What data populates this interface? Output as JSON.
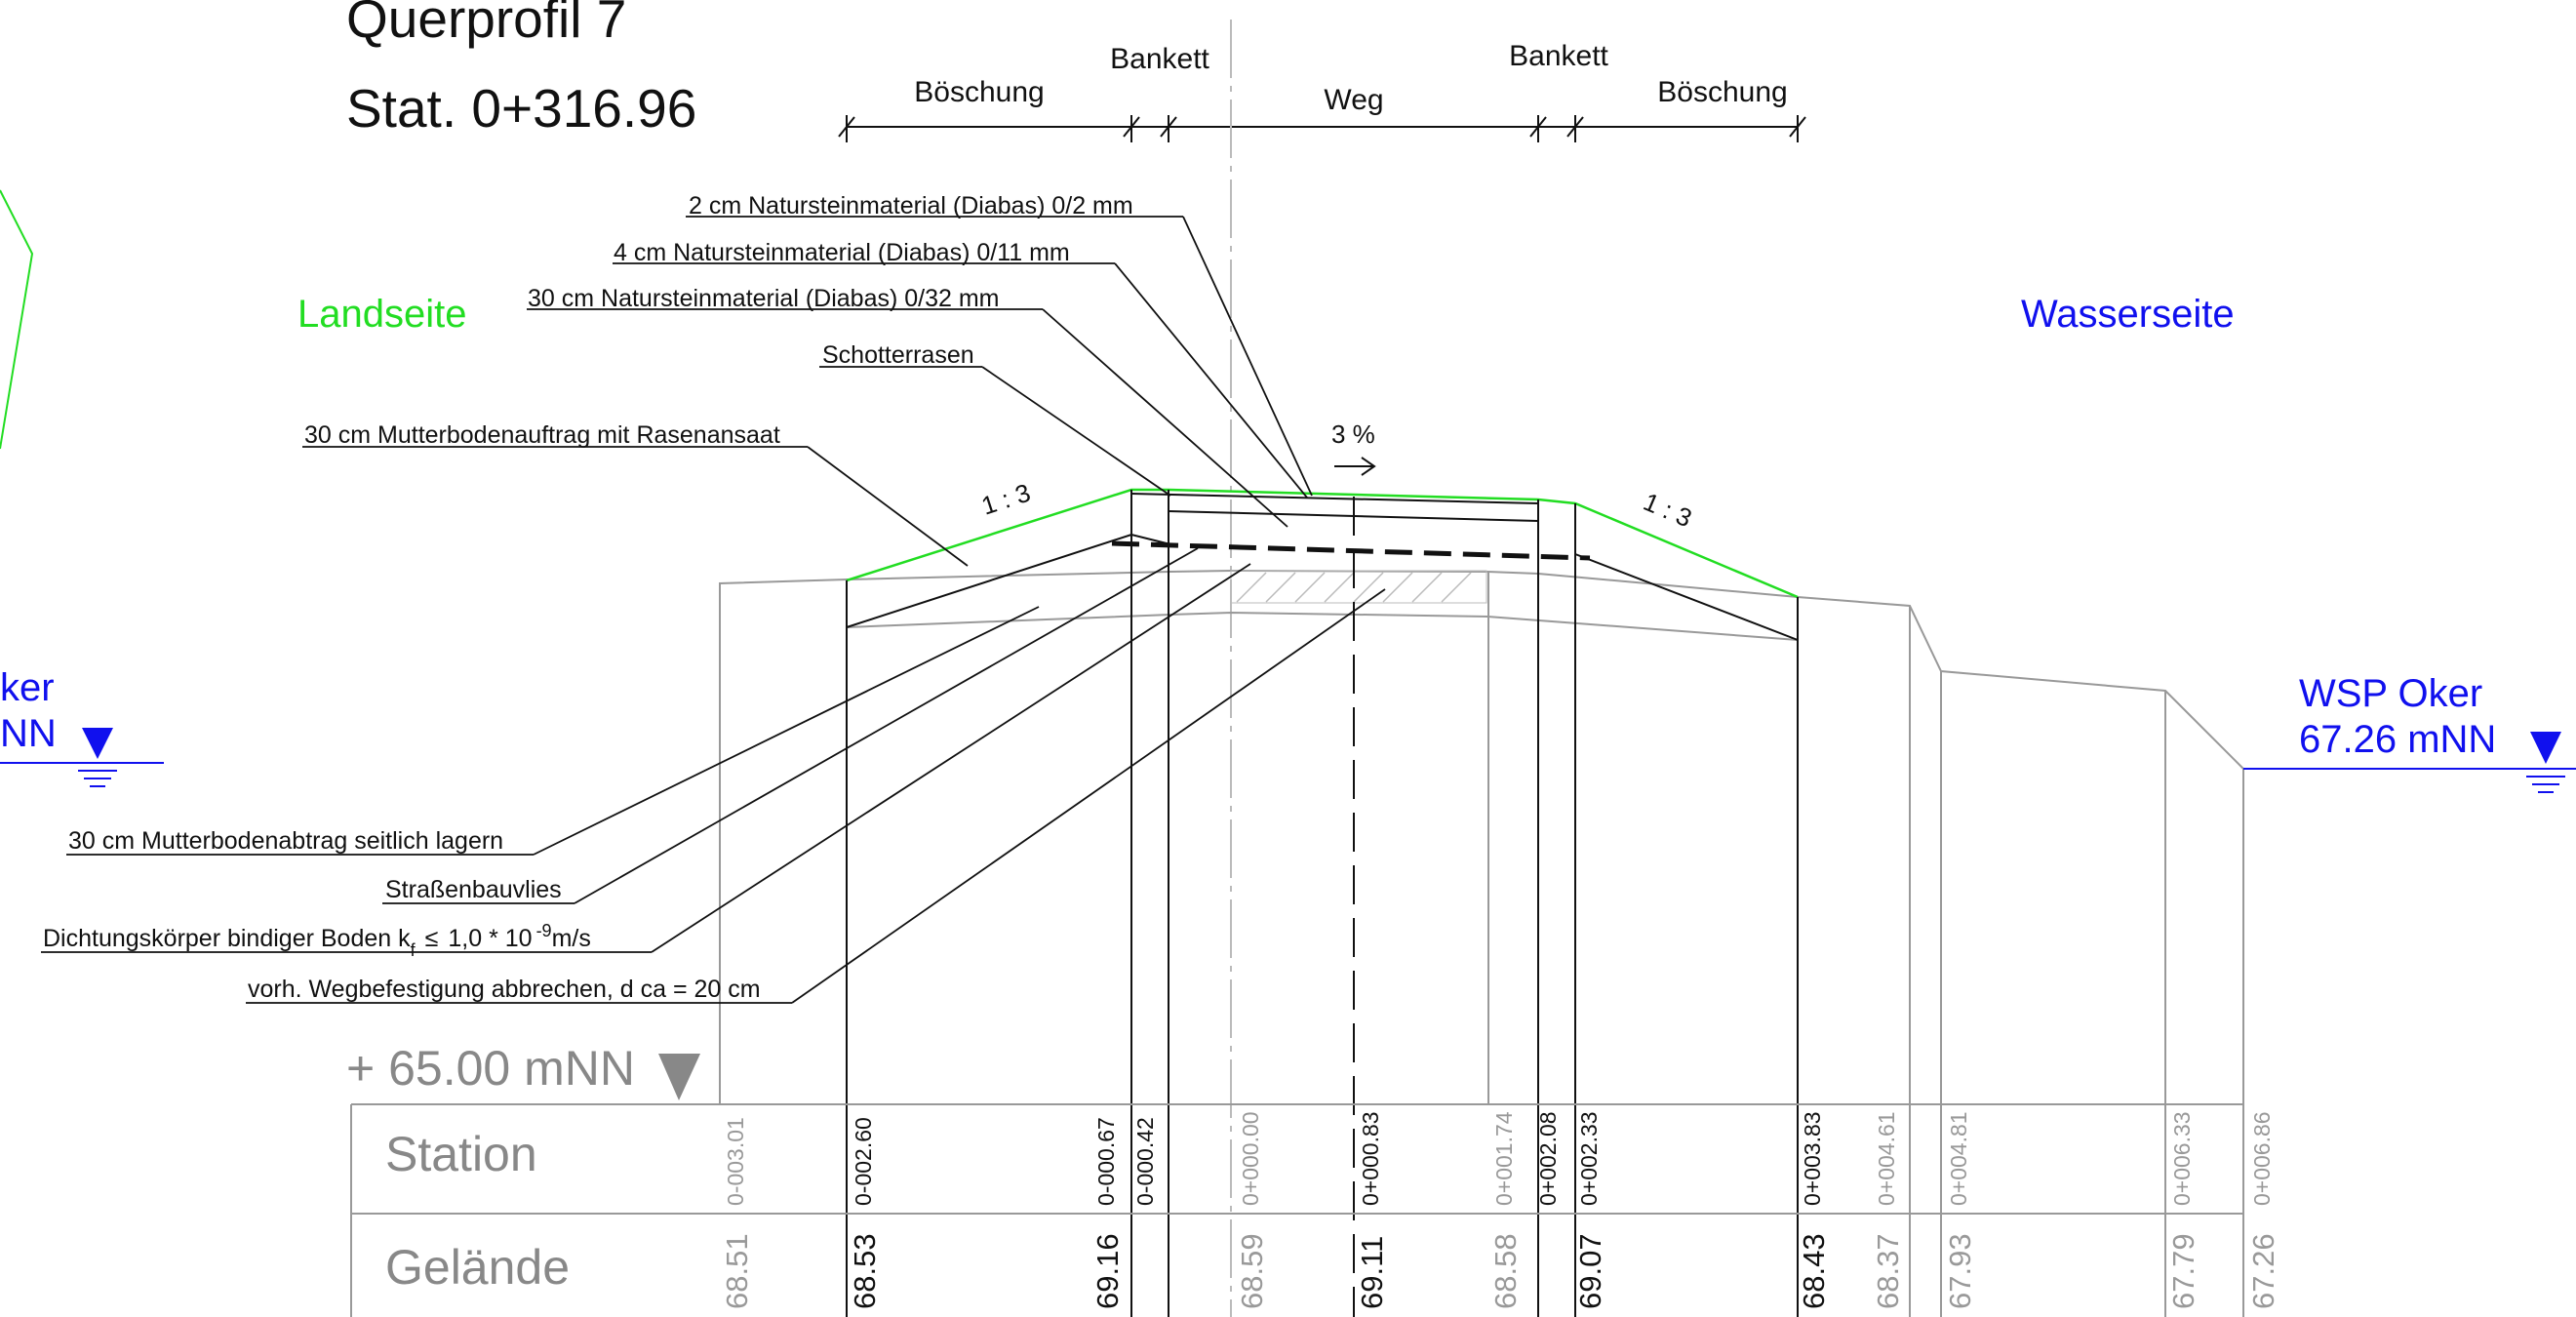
{
  "title": "Querprofil 7",
  "station": "Stat. 0+316.96",
  "sides": {
    "land": "Landseite",
    "water": "Wasserseite"
  },
  "dimension_labels": {
    "boeschung_left": "Böschung",
    "bankett_left": "Bankett",
    "weg": "Weg",
    "bankett_right": "Bankett",
    "boeschung_right": "Böschung"
  },
  "layers": {
    "l1": "2 cm Natursteinmaterial (Diabas) 0/2 mm",
    "l2": "4 cm Natursteinmaterial (Diabas) 0/11 mm",
    "l3": "30 cm Natursteinmaterial (Diabas) 0/32 mm",
    "l4": "Schotterrasen",
    "l5": "30 cm Mutterbodenauftrag mit Rasenansaat"
  },
  "notes": {
    "n1": "30 cm Mutterbodenabtrag seitlich lagern",
    "n2": "Straßenbauvlies",
    "n3_main": "Dichtungskörper bindiger Boden  k",
    "n3_sub": "f",
    "n3_le": "≤",
    "n3_val": "1,0 * 10",
    "n3_exp": "-9",
    "n3_unit": "m/s",
    "n4": "vorh. Wegbefestigung abbrechen, d ca = 20 cm"
  },
  "slopes": {
    "left": "1 : 3",
    "right": "1 : 3",
    "crossfall": "3 %"
  },
  "water_level": {
    "left_line1": "ker",
    "left_line2": "NN",
    "right_line1": "WSP Oker",
    "right_line2": "67.26 mNN"
  },
  "reference": "+ 65.00 mNN",
  "table": {
    "station_label": "Station",
    "gelaende_label": "Gelände",
    "columns": [
      {
        "station": "0-003.01",
        "gelaende": "68.51",
        "grey": true
      },
      {
        "station": "0-002.60",
        "gelaende": "68.53",
        "grey": false
      },
      {
        "station": "0-000.67",
        "gelaende": "69.16",
        "grey": false
      },
      {
        "station": "0-000.42",
        "gelaende": "",
        "grey": false
      },
      {
        "station": "0+000.00",
        "gelaende": "68.59",
        "grey": true
      },
      {
        "station": "0+000.83",
        "gelaende": "69.11",
        "grey": false
      },
      {
        "station": "0+001.74",
        "gelaende": "68.58",
        "grey": true
      },
      {
        "station": "0+002.08",
        "gelaende": "",
        "grey": false
      },
      {
        "station": "0+002.33",
        "gelaende": "69.07",
        "grey": false
      },
      {
        "station": "0+003.83",
        "gelaende": "68.43",
        "grey": false
      },
      {
        "station": "0+004.61",
        "gelaende": "68.37",
        "grey": true
      },
      {
        "station": "0+004.81",
        "gelaende": "67.93",
        "grey": true
      },
      {
        "station": "0+006.33",
        "gelaende": "67.79",
        "grey": true
      },
      {
        "station": "0+006.86",
        "gelaende": "67.26",
        "grey": true
      }
    ]
  },
  "colors": {
    "green": "#22dd22",
    "blue": "#1010ee",
    "grey": "#999999",
    "ink": "#111111"
  }
}
